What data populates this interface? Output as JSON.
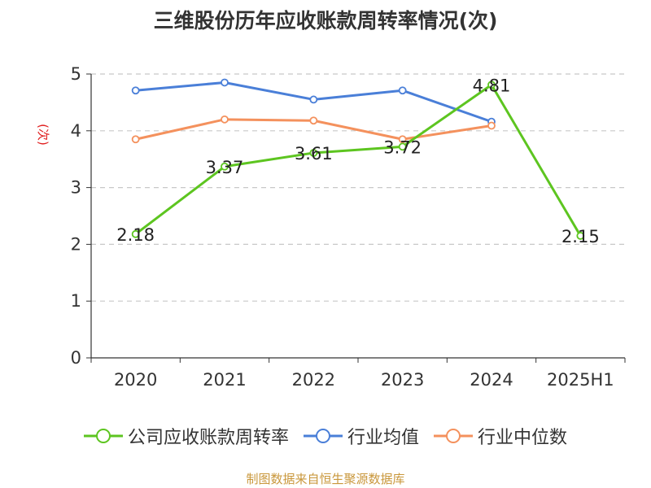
{
  "chart_data": {
    "type": "line",
    "title": "三维股份历年应收账款周转率情况(次)",
    "ylabel": "(次)",
    "xlabel": "",
    "categories": [
      "2020",
      "2021",
      "2022",
      "2023",
      "2024",
      "2025H1"
    ],
    "ylim": [
      0,
      5
    ],
    "yticks": [
      0,
      1,
      2,
      3,
      4,
      5
    ],
    "grid": true,
    "legend_position": "bottom",
    "series": [
      {
        "name": "公司应收账款周转率",
        "color": "#5dc520",
        "values": [
          2.18,
          3.37,
          3.61,
          3.72,
          4.81,
          2.15
        ],
        "data_labels": [
          "2.18",
          "3.37",
          "3.61",
          "3.72",
          "4.81",
          "2.15"
        ]
      },
      {
        "name": "行业均值",
        "color": "#4a7fd8",
        "values": [
          4.71,
          4.85,
          4.55,
          4.71,
          4.16,
          null
        ]
      },
      {
        "name": "行业中位数",
        "color": "#f4915d",
        "values": [
          3.85,
          4.2,
          4.18,
          3.85,
          4.09,
          null
        ]
      }
    ]
  },
  "footer": "制图数据来自恒生聚源数据库"
}
